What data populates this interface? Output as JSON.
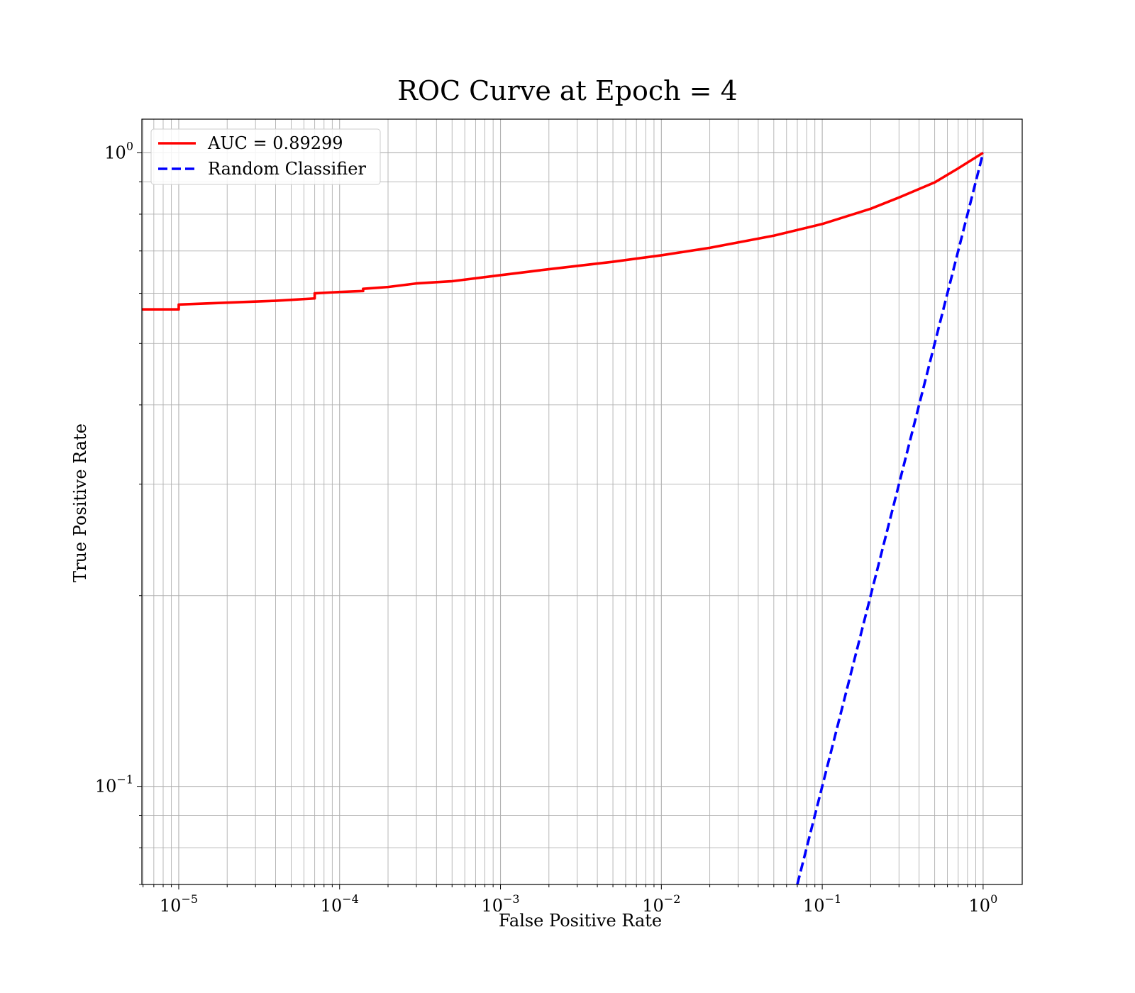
{
  "chart_data": {
    "type": "line",
    "title": "ROC Curve at Epoch = 4",
    "xlabel": "False Positive Rate",
    "ylabel": "True Positive Rate",
    "xscale": "log",
    "yscale": "log",
    "xlim": [
      5.9e-06,
      1.75
    ],
    "ylim": [
      0.07,
      1.13
    ],
    "grid": "both (major and minor)",
    "legend_position": "upper left",
    "x_ticks": [
      {
        "base": "10",
        "exp": "−5",
        "value": 1e-05
      },
      {
        "base": "10",
        "exp": "−4",
        "value": 0.0001
      },
      {
        "base": "10",
        "exp": "−3",
        "value": 0.001
      },
      {
        "base": "10",
        "exp": "−2",
        "value": 0.01
      },
      {
        "base": "10",
        "exp": "−1",
        "value": 0.1
      },
      {
        "base": "10",
        "exp": "0",
        "value": 1
      }
    ],
    "y_ticks": [
      {
        "base": "10",
        "exp": "−1",
        "value": 0.1
      },
      {
        "base": "10",
        "exp": "0",
        "value": 1
      }
    ],
    "series": [
      {
        "name": "AUC = 0.89299",
        "color": "#ff0000",
        "style": "solid",
        "points": [
          [
            5.9e-06,
            0.566
          ],
          [
            1e-05,
            0.566
          ],
          [
            1e-05,
            0.576
          ],
          [
            2e-05,
            0.58
          ],
          [
            4e-05,
            0.584
          ],
          [
            7e-05,
            0.589
          ],
          [
            7e-05,
            0.6
          ],
          [
            0.0001,
            0.603
          ],
          [
            0.00014,
            0.605
          ],
          [
            0.00014,
            0.61
          ],
          [
            0.0002,
            0.614
          ],
          [
            0.0003,
            0.622
          ],
          [
            0.0005,
            0.627
          ],
          [
            0.001,
            0.641
          ],
          [
            0.002,
            0.655
          ],
          [
            0.005,
            0.673
          ],
          [
            0.01,
            0.689
          ],
          [
            0.02,
            0.708
          ],
          [
            0.05,
            0.74
          ],
          [
            0.1,
            0.772
          ],
          [
            0.2,
            0.816
          ],
          [
            0.3,
            0.85
          ],
          [
            0.5,
            0.898
          ],
          [
            0.7,
            0.945
          ],
          [
            1.0,
            1.0
          ]
        ]
      },
      {
        "name": "Random Classifier",
        "color": "#0000ff",
        "style": "dashed",
        "points": [
          [
            0.07,
            0.07
          ],
          [
            1.0,
            1.0
          ]
        ]
      }
    ]
  }
}
